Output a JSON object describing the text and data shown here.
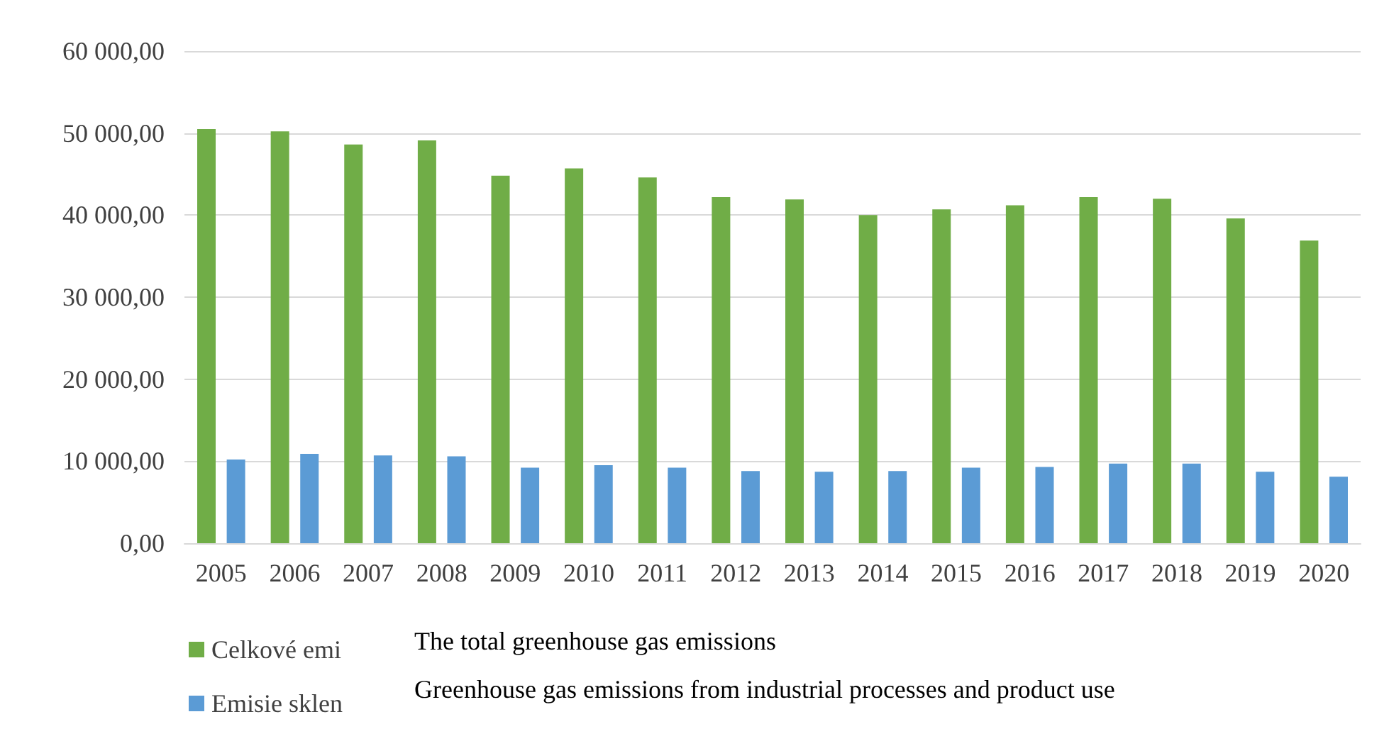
{
  "chart_data": {
    "type": "bar",
    "categories": [
      "2005",
      "2006",
      "2007",
      "2008",
      "2009",
      "2010",
      "2011",
      "2012",
      "2013",
      "2014",
      "2015",
      "2016",
      "2017",
      "2018",
      "2019",
      "2020"
    ],
    "series": [
      {
        "name": "Celkové emi",
        "color": "#70ad47",
        "values": [
          50500,
          50200,
          48600,
          49100,
          44800,
          45700,
          44600,
          42200,
          41900,
          40000,
          40700,
          41200,
          42200,
          42000,
          39600,
          36900
        ]
      },
      {
        "name": "Emisie sklen",
        "color": "#5b9bd5",
        "values": [
          10200,
          10900,
          10700,
          10600,
          9200,
          9500,
          9200,
          8800,
          8700,
          8800,
          9200,
          9300,
          9700,
          9700,
          8700,
          8100
        ]
      }
    ],
    "ylim": [
      0,
      60000
    ],
    "yticks": [
      {
        "value": 0,
        "label": "0,00"
      },
      {
        "value": 10000,
        "label": "10 000,00"
      },
      {
        "value": 20000,
        "label": "20 000,00"
      },
      {
        "value": 30000,
        "label": "30 000,00"
      },
      {
        "value": 40000,
        "label": "40 000,00"
      },
      {
        "value": 50000,
        "label": "50 000,00"
      },
      {
        "value": 60000,
        "label": "60 000,00"
      }
    ],
    "grid": "y",
    "legend": "bottom left",
    "annotations": [
      "The total greenhouse gas emissions",
      "Greenhouse gas emissions from industrial processes and product use"
    ]
  }
}
